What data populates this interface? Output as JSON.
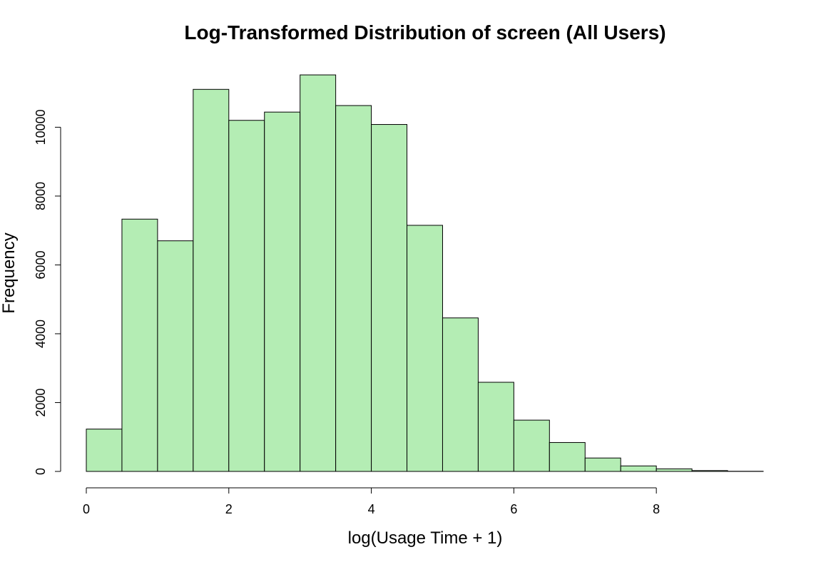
{
  "chart_data": {
    "type": "bar",
    "title": "Log-Transformed Distribution of screen (All Users)",
    "xlabel": "log(Usage Time + 1)",
    "ylabel": "Frequency",
    "bar_color": "#b4edb4",
    "bins": [
      [
        0.0,
        0.5
      ],
      [
        0.5,
        1.0
      ],
      [
        1.0,
        1.5
      ],
      [
        1.5,
        2.0
      ],
      [
        2.0,
        2.5
      ],
      [
        2.5,
        3.0
      ],
      [
        3.0,
        3.5
      ],
      [
        3.5,
        4.0
      ],
      [
        4.0,
        4.5
      ],
      [
        4.5,
        5.0
      ],
      [
        5.0,
        5.5
      ],
      [
        5.5,
        6.0
      ],
      [
        6.0,
        6.5
      ],
      [
        6.5,
        7.0
      ],
      [
        7.0,
        7.5
      ],
      [
        7.5,
        8.0
      ],
      [
        8.0,
        8.5
      ],
      [
        8.5,
        9.0
      ],
      [
        9.0,
        9.5
      ]
    ],
    "values": [
      1230,
      7330,
      6700,
      11100,
      10200,
      10440,
      11520,
      10630,
      10080,
      7150,
      4460,
      2590,
      1490,
      840,
      390,
      160,
      75,
      25,
      5
    ],
    "xlim": [
      0,
      9.5
    ],
    "ylim": [
      0,
      11500
    ],
    "x_ticks": [
      0,
      2,
      4,
      6,
      8
    ],
    "x_tick_labels": [
      "0",
      "2",
      "4",
      "6",
      "8"
    ],
    "y_ticks": [
      0,
      2000,
      4000,
      6000,
      8000,
      10000
    ],
    "y_tick_labels": [
      "0",
      "2000",
      "4000",
      "6000",
      "8000",
      "10000"
    ],
    "grid": false,
    "legend": "none"
  }
}
